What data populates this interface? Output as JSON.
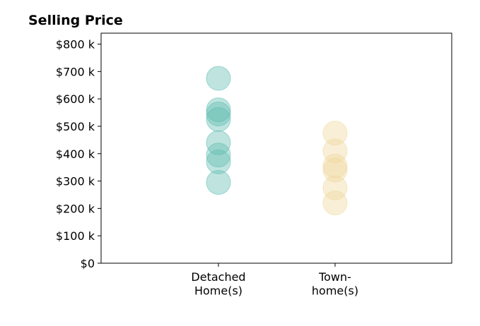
{
  "chart_data": {
    "type": "scatter",
    "title": "Selling Price",
    "xlabel": "",
    "ylabel": "",
    "categories": [
      [
        "Detached",
        "Home(s)"
      ],
      [
        "Town-",
        "home(s)"
      ]
    ],
    "ylim": [
      0,
      840000
    ],
    "yticks": [
      0,
      100000,
      200000,
      300000,
      400000,
      500000,
      600000,
      700000,
      800000
    ],
    "ytick_labels": [
      "$0",
      "$100 k",
      "$200 k",
      "$300 k",
      "$400 k",
      "$500 k",
      "$600 k",
      "$700 k",
      "$800 k"
    ],
    "grid": false,
    "legend": "none",
    "series": [
      {
        "category_index": 0,
        "color": "#5fbcb0",
        "values": [
          675000,
          560000,
          545000,
          525000,
          440000,
          395000,
          370000,
          295000
        ]
      },
      {
        "category_index": 1,
        "color": "#f0d89a",
        "values": [
          475000,
          410000,
          355000,
          340000,
          275000,
          220000
        ]
      }
    ]
  }
}
